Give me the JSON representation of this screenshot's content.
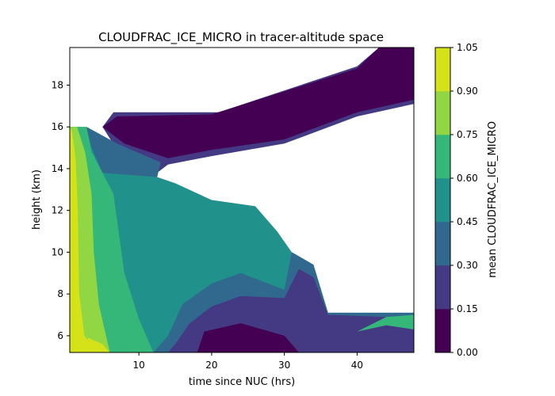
{
  "chart_data": {
    "type": "heatmap",
    "subtype": "filled-contour",
    "title": "CLOUDFRAC_ICE_MICRO in tracer-altitude space",
    "xlabel": "time since NUC (hrs)",
    "ylabel": "height (km)",
    "xlim": [
      0.5,
      47.8
    ],
    "ylim": [
      5.2,
      19.8
    ],
    "x_ticks": [
      10,
      20,
      30,
      40
    ],
    "y_ticks": [
      6,
      8,
      10,
      12,
      14,
      16,
      18
    ],
    "grid": false,
    "colorbar": {
      "label": "mean CLOUDFRAC_ICE_MICRO",
      "levels": [
        0.0,
        0.15,
        0.3,
        0.45,
        0.6,
        0.75,
        0.9,
        1.05
      ],
      "tick_labels": [
        "0.00",
        "0.15",
        "0.30",
        "0.45",
        "0.60",
        "0.75",
        "0.90",
        "1.05"
      ],
      "colors": [
        "#440154",
        "#443983",
        "#31688e",
        "#21918c",
        "#35b779",
        "#90d743",
        "#d5e21a"
      ]
    },
    "regions": [
      {
        "level": 3,
        "poly": [
          [
            0.5,
            5.2
          ],
          [
            47.8,
            5.2
          ],
          [
            47.8,
            7.1
          ],
          [
            36,
            7.1
          ],
          [
            34,
            9.4
          ],
          [
            31,
            10
          ],
          [
            29,
            11
          ],
          [
            26,
            12.2
          ],
          [
            20,
            12.5
          ],
          [
            15,
            13.3
          ],
          [
            12.5,
            13.6
          ],
          [
            13,
            14.3
          ],
          [
            7,
            15.2
          ],
          [
            2.8,
            16
          ],
          [
            0.5,
            16
          ]
        ]
      },
      {
        "level": 1,
        "poly": [
          [
            5,
            16
          ],
          [
            6.5,
            16.7
          ],
          [
            21,
            16.7
          ],
          [
            40,
            18.9
          ],
          [
            43,
            19.8
          ],
          [
            47.8,
            19.8
          ],
          [
            47.8,
            17.1
          ],
          [
            40,
            16.5
          ],
          [
            30,
            15.2
          ],
          [
            20,
            14.6
          ],
          [
            14,
            14.2
          ],
          [
            12.5,
            13.8
          ],
          [
            7,
            14.9
          ]
        ]
      },
      {
        "level": 0,
        "poly": [
          [
            5,
            16
          ],
          [
            7,
            16.5
          ],
          [
            20,
            16.6
          ],
          [
            40,
            18.8
          ],
          [
            43,
            19.8
          ],
          [
            47.8,
            19.8
          ],
          [
            47.8,
            17.3
          ],
          [
            40,
            16.7
          ],
          [
            30,
            15.4
          ],
          [
            20,
            14.9
          ],
          [
            14,
            14.5
          ],
          [
            8,
            15.2
          ]
        ]
      },
      {
        "level": 2,
        "poly": [
          [
            2.8,
            16
          ],
          [
            7,
            15.2
          ],
          [
            13,
            14.3
          ],
          [
            12.5,
            13.6
          ],
          [
            5,
            13.8
          ],
          [
            3.5,
            15
          ]
        ]
      },
      {
        "level": 2,
        "poly": [
          [
            47.8,
            5.2
          ],
          [
            47.8,
            7.1
          ],
          [
            36,
            7.1
          ],
          [
            34,
            9.4
          ],
          [
            31,
            10
          ],
          [
            30,
            8.2
          ],
          [
            24,
            9
          ],
          [
            20,
            8.5
          ],
          [
            16,
            7.5
          ],
          [
            14,
            6
          ],
          [
            12,
            5.2
          ]
        ]
      },
      {
        "level": 1,
        "poly": [
          [
            47.8,
            5.2
          ],
          [
            47.8,
            6.6
          ],
          [
            44,
            6.9
          ],
          [
            36,
            7
          ],
          [
            34,
            8.8
          ],
          [
            32,
            9.2
          ],
          [
            30,
            7.8
          ],
          [
            24,
            7.9
          ],
          [
            20,
            7.4
          ],
          [
            17,
            6.6
          ],
          [
            15,
            5.6
          ],
          [
            14,
            5.2
          ]
        ]
      },
      {
        "level": 0,
        "poly": [
          [
            19,
            6.2
          ],
          [
            24,
            6.6
          ],
          [
            30,
            6
          ],
          [
            32,
            5.2
          ],
          [
            18,
            5.2
          ]
        ]
      },
      {
        "level": 4,
        "poly": [
          [
            0.5,
            5.2
          ],
          [
            12,
            5.2
          ],
          [
            10,
            6.8
          ],
          [
            8,
            9
          ],
          [
            6.5,
            12.8
          ],
          [
            3.5,
            14.8
          ],
          [
            2.8,
            16
          ],
          [
            0.5,
            16
          ]
        ]
      },
      {
        "level": 5,
        "poly": [
          [
            0.5,
            5.2
          ],
          [
            6,
            5.2
          ],
          [
            4.5,
            7.5
          ],
          [
            3.8,
            10
          ],
          [
            3.5,
            12.8
          ],
          [
            2.6,
            14.8
          ],
          [
            1.5,
            16
          ],
          [
            0.5,
            16
          ]
        ]
      },
      {
        "level": 6,
        "poly": [
          [
            0.5,
            5.2
          ],
          [
            5,
            5.2
          ],
          [
            3.8,
            5.4
          ],
          [
            2.5,
            6
          ],
          [
            1.8,
            8
          ],
          [
            1.6,
            12
          ],
          [
            1.3,
            14.5
          ],
          [
            0.8,
            15.8
          ],
          [
            0.5,
            16
          ]
        ]
      },
      {
        "level": 6,
        "poly": [
          [
            2.5,
            5.2
          ],
          [
            6,
            5.2
          ],
          [
            5,
            5.6
          ],
          [
            3,
            5.9
          ]
        ]
      },
      {
        "level": 4,
        "poly": [
          [
            40,
            6.2
          ],
          [
            44,
            6.9
          ],
          [
            47.8,
            7.0
          ],
          [
            47.8,
            6.3
          ],
          [
            44,
            6.5
          ]
        ]
      }
    ]
  }
}
